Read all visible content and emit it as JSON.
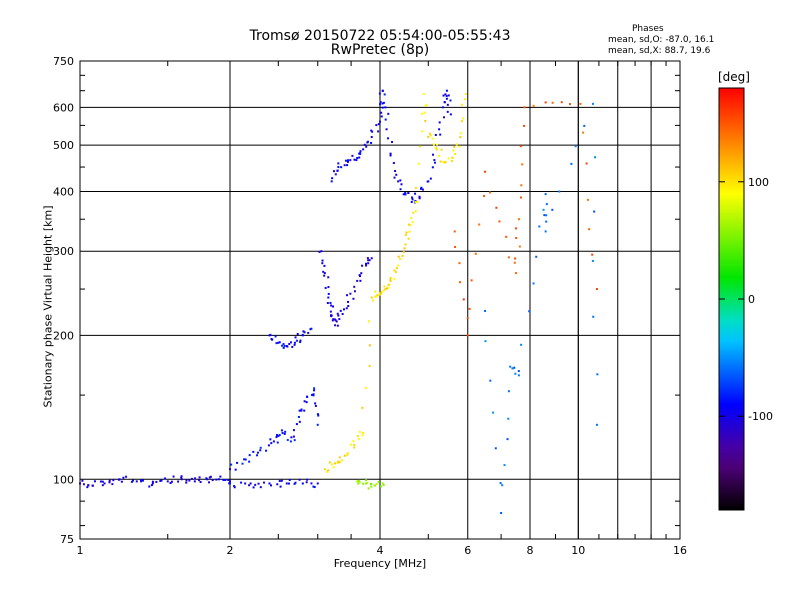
{
  "header": {
    "title_line1": "Tromsø 20150722 05:54:00-05:55:43",
    "title_line2": "RwPretec (8p)",
    "phases_title": "Phases",
    "phases_o": "mean, sd,O: -87.0, 16.1",
    "phases_x": "mean, sd,X: 88.7, 19.6"
  },
  "chart_data": {
    "type": "scatter",
    "xlabel": "Frequency [MHz]",
    "ylabel": "Stationary phase Virtual Height [km]",
    "x_scale": "log",
    "y_scale": "log",
    "xlim": [
      1,
      16
    ],
    "ylim": [
      75,
      750
    ],
    "x_ticks": [
      1,
      2,
      4,
      6,
      8,
      10,
      16
    ],
    "x_tick_labels": [
      "1",
      "2",
      "4",
      "6",
      "8",
      "10",
      "16"
    ],
    "y_ticks": [
      75,
      100,
      200,
      300,
      400,
      500,
      600,
      750
    ],
    "y_tick_labels": [
      "75",
      "100",
      "200",
      "300",
      "400",
      "500",
      "600",
      "750"
    ],
    "grid": true,
    "colorbar": {
      "label": "[deg]",
      "range": [
        -180,
        180
      ],
      "ticks": [
        -100,
        0,
        100
      ],
      "tick_labels": [
        "-100",
        "0",
        "100"
      ]
    },
    "traces": [
      {
        "name": "",
        "phase": -100,
        "points": [
          [
            1.0,
            98
          ],
          [
            1.06,
            97
          ],
          [
            1.12,
            98
          ],
          [
            1.2,
            100
          ],
          [
            1.3,
            99
          ],
          [
            1.4,
            98
          ],
          [
            1.5,
            99
          ],
          [
            1.6,
            100
          ],
          [
            1.7,
            99
          ],
          [
            1.8,
            100
          ],
          [
            1.9,
            100
          ],
          [
            2.0,
            99
          ]
        ]
      },
      {
        "name": "",
        "phase": -95,
        "points": [
          [
            2.0,
            98
          ],
          [
            2.2,
            98
          ],
          [
            2.4,
            98
          ],
          [
            2.6,
            98
          ],
          [
            2.8,
            98
          ],
          [
            3.0,
            98
          ]
        ]
      },
      {
        "name": "",
        "phase": -85,
        "points": [
          [
            2.0,
            105
          ],
          [
            2.15,
            110
          ],
          [
            2.3,
            115
          ],
          [
            2.45,
            120
          ],
          [
            2.55,
            125
          ],
          [
            2.65,
            120
          ],
          [
            2.75,
            135
          ],
          [
            2.85,
            145
          ],
          [
            2.95,
            155
          ],
          [
            3.0,
            130
          ]
        ]
      },
      {
        "name": "",
        "phase": -90,
        "points": [
          [
            2.4,
            200
          ],
          [
            2.5,
            193
          ],
          [
            2.6,
            190
          ],
          [
            2.7,
            193
          ],
          [
            2.8,
            200
          ],
          [
            2.9,
            206
          ]
        ]
      },
      {
        "name": "",
        "phase": -100,
        "points": [
          [
            3.05,
            300
          ],
          [
            3.1,
            270
          ],
          [
            3.15,
            240
          ],
          [
            3.2,
            220
          ],
          [
            3.25,
            210
          ],
          [
            3.3,
            220
          ],
          [
            3.45,
            235
          ],
          [
            3.6,
            260
          ],
          [
            3.75,
            280
          ],
          [
            3.85,
            290
          ]
        ]
      },
      {
        "name": "",
        "phase": -95,
        "points": [
          [
            3.2,
            420
          ],
          [
            3.3,
            450
          ],
          [
            3.45,
            465
          ],
          [
            3.6,
            470
          ],
          [
            3.7,
            490
          ],
          [
            3.85,
            520
          ],
          [
            4.0,
            560
          ],
          [
            4.05,
            650
          ],
          [
            4.1,
            600
          ],
          [
            4.2,
            480
          ],
          [
            4.35,
            420
          ],
          [
            4.5,
            395
          ],
          [
            4.65,
            385
          ],
          [
            4.8,
            390
          ],
          [
            5.0,
            420
          ],
          [
            5.2,
            500
          ],
          [
            5.35,
            600
          ],
          [
            5.45,
            650
          ],
          [
            5.55,
            580
          ]
        ]
      },
      {
        "name": "",
        "phase": 100,
        "points": [
          [
            3.1,
            105
          ],
          [
            3.25,
            108
          ],
          [
            3.4,
            112
          ],
          [
            3.55,
            118
          ],
          [
            3.7,
            125
          ],
          [
            3.85,
            240
          ],
          [
            4.0,
            245
          ],
          [
            4.1,
            250
          ],
          [
            4.2,
            260
          ],
          [
            4.35,
            280
          ],
          [
            4.5,
            310
          ],
          [
            4.6,
            340
          ],
          [
            4.75,
            380
          ],
          [
            4.9,
            640
          ],
          [
            5.0,
            520
          ],
          [
            5.2,
            490
          ],
          [
            5.4,
            460
          ],
          [
            5.6,
            470
          ],
          [
            5.8,
            520
          ],
          [
            5.95,
            640
          ]
        ]
      },
      {
        "name": "",
        "phase": 60,
        "points": [
          [
            3.6,
            99
          ],
          [
            3.75,
            98
          ],
          [
            3.9,
            97
          ],
          [
            4.05,
            98
          ]
        ]
      },
      {
        "name": "",
        "phase": 150,
        "points": [
          [
            5.65,
            330
          ],
          [
            6.0,
            200
          ],
          [
            6.5,
            440
          ],
          [
            7.5,
            270
          ],
          [
            7.6,
            350
          ],
          [
            7.8,
            600
          ],
          [
            10.1,
            610
          ],
          [
            10.9,
            250
          ]
        ]
      },
      {
        "name": "",
        "phase": -60,
        "points": [
          [
            6.5,
            225
          ],
          [
            7.0,
            85
          ],
          [
            7.3,
            172
          ],
          [
            7.6,
            165
          ],
          [
            8.6,
            395
          ],
          [
            8.6,
            330
          ],
          [
            10.7,
            610
          ],
          [
            10.9,
            130
          ]
        ]
      }
    ]
  }
}
